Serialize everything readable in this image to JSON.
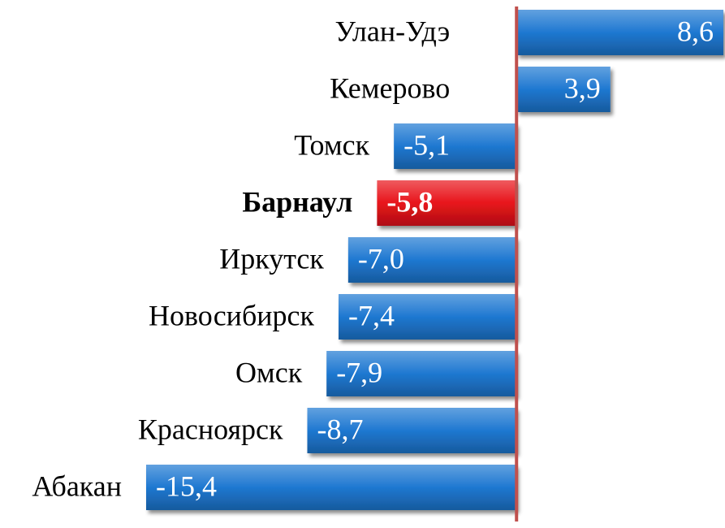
{
  "chart_data": {
    "type": "hbar",
    "categories": [
      "Улан-Удэ",
      "Кемерово",
      "Томск",
      "Барнаул",
      "Иркутск",
      "Новосибирск",
      "Омск",
      "Красноярск",
      "Абакан"
    ],
    "values": [
      8.6,
      3.9,
      -5.1,
      -5.8,
      -7.0,
      -7.4,
      -7.9,
      -8.7,
      -15.4
    ],
    "value_labels": [
      "8,6",
      "3,9",
      "-5,1",
      "-5,8",
      "-7,0",
      "-7,4",
      "-7,9",
      "-8,7",
      "-15,4"
    ],
    "colors": [
      "#1f78d1",
      "#1f78d1",
      "#1f78d1",
      "#e8141b",
      "#1f78d1",
      "#1f78d1",
      "#1f78d1",
      "#1f78d1",
      "#1f78d1"
    ],
    "highlight_color": "#e8141b",
    "zero_line_color": "#c0504d"
  }
}
